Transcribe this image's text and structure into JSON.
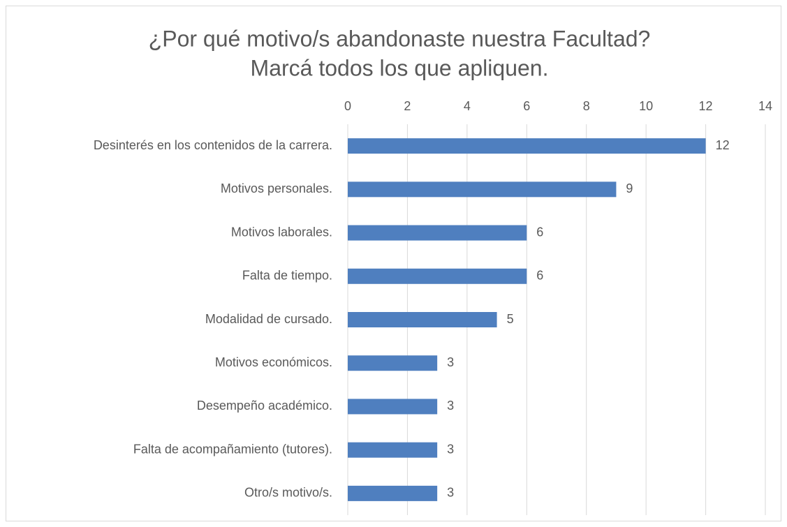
{
  "chart_data": {
    "type": "bar",
    "orientation": "horizontal",
    "title": [
      "¿Por qué motivo/s abandonaste nuestra Facultad?",
      "Marcá todos los que apliquen."
    ],
    "categories": [
      "Desinterés en los contenidos de la carrera.",
      "Motivos personales.",
      "Motivos laborales.",
      "Falta de tiempo.",
      "Modalidad de cursado.",
      "Motivos económicos.",
      "Desempeño académico.",
      "Falta de acompañamiento (tutores).",
      "Otro/s motivo/s."
    ],
    "values": [
      12,
      9,
      6,
      6,
      5,
      3,
      3,
      3,
      3
    ],
    "color": "#4f7fbf",
    "xlim": [
      0,
      14
    ],
    "xticks": [
      0,
      2,
      4,
      6,
      8,
      10,
      12,
      14
    ],
    "grid": true,
    "data_labels": true
  }
}
